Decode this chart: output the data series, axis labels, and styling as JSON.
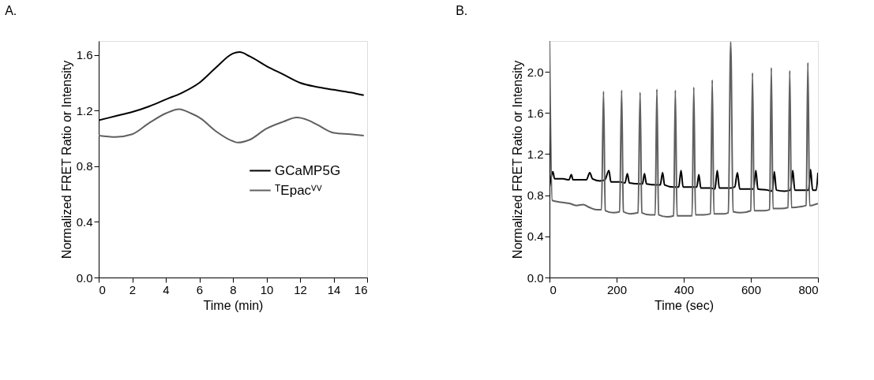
{
  "chart_data": [
    {
      "type": "line",
      "title": "A.",
      "xlabel": "Time (min)",
      "ylabel": "Normalized FRET Ratio or Intensity",
      "xlim": [
        0,
        16
      ],
      "xticks": [
        0,
        2,
        4,
        6,
        8,
        10,
        12,
        14,
        16
      ],
      "ylim": [
        0,
        1.7
      ],
      "yticks": [
        {
          "value": 0,
          "label": "0.0"
        },
        {
          "value": 0.4,
          "label": "0.4"
        },
        {
          "value": 0.8,
          "label": "0.8"
        },
        {
          "value": 1.2,
          "label": "1.2"
        },
        {
          "value": 1.6,
          "label": "1.6"
        }
      ],
      "grid": false,
      "legend": "right",
      "line_style": "solid",
      "marker": "none",
      "series": [
        {
          "name": "GCaMP5G",
          "color": "#000000",
          "x": [
            0,
            1,
            2,
            3,
            4,
            5,
            6,
            7,
            8,
            8.4,
            9,
            10,
            11,
            12,
            13,
            14,
            15,
            15.8
          ],
          "values": [
            1.13,
            1.16,
            1.19,
            1.23,
            1.28,
            1.33,
            1.4,
            1.51,
            1.61,
            1.62,
            1.59,
            1.52,
            1.46,
            1.4,
            1.37,
            1.35,
            1.33,
            1.31
          ]
        },
        {
          "name": "ᵀEpacⱽⱽ",
          "color": "#606060",
          "x": [
            0,
            1,
            2,
            3,
            4,
            4.8,
            5.5,
            6,
            7,
            8,
            8.3,
            9,
            10,
            11,
            11.8,
            12.5,
            13,
            14,
            15,
            15.8
          ],
          "values": [
            1.02,
            1.01,
            1.03,
            1.11,
            1.18,
            1.21,
            1.18,
            1.15,
            1.05,
            0.98,
            0.97,
            0.99,
            1.07,
            1.12,
            1.15,
            1.13,
            1.1,
            1.04,
            1.03,
            1.02
          ]
        }
      ]
    },
    {
      "type": "line",
      "title": "B.",
      "xlabel": "Time (sec)",
      "ylabel": "Normalized FRET Ratio or Intensity",
      "xlim": [
        0,
        800
      ],
      "xticks": [
        0,
        200,
        400,
        600,
        800
      ],
      "ylim": [
        0,
        2.3
      ],
      "yticks": [
        {
          "value": 0,
          "label": "0.0"
        },
        {
          "value": 0.4,
          "label": "0.4"
        },
        {
          "value": 0.8,
          "label": "0.8"
        },
        {
          "value": 1.2,
          "label": "1.2"
        },
        {
          "value": 1.6,
          "label": "1.6"
        },
        {
          "value": 2.0,
          "label": "2.0"
        }
      ],
      "grid": false,
      "legend": false,
      "line_style": "solid",
      "marker": "none",
      "series": [
        {
          "color": "#000000",
          "x": [
            0,
            5,
            10,
            15,
            40,
            58,
            65,
            70,
            110,
            120,
            128,
            150,
            165,
            177,
            183,
            210,
            225,
            232,
            238,
            270,
            277,
            283,
            289,
            320,
            330,
            337,
            343,
            370,
            385,
            392,
            398,
            430,
            439,
            445,
            451,
            480,
            493,
            500,
            506,
            540,
            552,
            560,
            567,
            600,
            608,
            615,
            621,
            650,
            664,
            670,
            676,
            700,
            718,
            725,
            731,
            760,
            772,
            778,
            784,
            795,
            800
          ],
          "values": [
            0.88,
            0.98,
            1.03,
            0.96,
            0.96,
            0.95,
            1.0,
            0.95,
            0.95,
            1.02,
            0.96,
            0.94,
            0.95,
            1.04,
            0.93,
            0.93,
            0.92,
            1.01,
            0.92,
            0.91,
            0.91,
            1.01,
            0.91,
            0.9,
            0.9,
            1.02,
            0.9,
            0.88,
            0.88,
            1.04,
            0.88,
            0.88,
            0.88,
            1.0,
            0.87,
            0.87,
            0.86,
            1.04,
            0.87,
            0.87,
            0.88,
            1.02,
            0.86,
            0.86,
            0.86,
            1.04,
            0.86,
            0.85,
            0.84,
            1.03,
            0.85,
            0.84,
            0.85,
            1.04,
            0.85,
            0.85,
            0.85,
            1.05,
            0.85,
            0.85,
            1.02
          ]
        },
        {
          "color": "#606060",
          "x": [
            0,
            8,
            20,
            40,
            60,
            80,
            100,
            120,
            140,
            155,
            161,
            166,
            190,
            209,
            215,
            220,
            240,
            264,
            270,
            275,
            300,
            315,
            320,
            325,
            350,
            370,
            375,
            380,
            410,
            425,
            430,
            435,
            460,
            480,
            485,
            490,
            520,
            533,
            540,
            547,
            570,
            600,
            605,
            610,
            640,
            656,
            661,
            666,
            690,
            711,
            716,
            721,
            750,
            765,
            770,
            775,
            800
          ],
          "values": [
            2.3,
            0.75,
            0.74,
            0.73,
            0.72,
            0.7,
            0.71,
            0.68,
            0.66,
            0.66,
            1.81,
            0.65,
            0.63,
            0.64,
            1.82,
            0.64,
            0.62,
            0.63,
            1.8,
            0.63,
            0.61,
            0.61,
            1.83,
            0.61,
            0.59,
            0.6,
            1.82,
            0.6,
            0.6,
            0.6,
            1.85,
            0.61,
            0.61,
            0.62,
            1.92,
            0.62,
            0.62,
            0.63,
            2.29,
            0.64,
            0.63,
            0.65,
            1.99,
            0.65,
            0.65,
            0.66,
            2.04,
            0.67,
            0.67,
            0.68,
            2.01,
            0.68,
            0.69,
            0.7,
            2.09,
            0.7,
            0.72
          ]
        }
      ]
    }
  ]
}
